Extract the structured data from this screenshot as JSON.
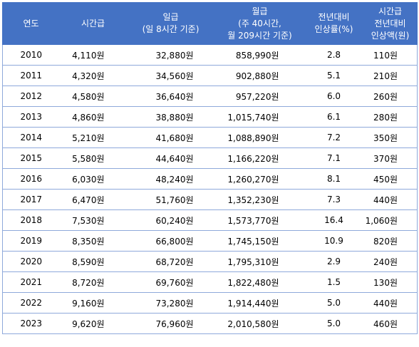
{
  "table": {
    "headers": [
      {
        "lines": [
          "연도"
        ]
      },
      {
        "lines": [
          "시간급"
        ]
      },
      {
        "lines": [
          "일급",
          "(일 8시간 기준)"
        ]
      },
      {
        "lines": [
          "월급",
          "(주 40시간,",
          "월 209시간 기준)"
        ]
      },
      {
        "lines": [
          "전년대비",
          "인상률(%)"
        ]
      },
      {
        "lines": [
          "시간급",
          "전년대비",
          "인상액(원)"
        ]
      }
    ],
    "rows": [
      [
        "2010",
        "4,110원",
        "32,880원",
        "858,990원",
        "2.8",
        "110원"
      ],
      [
        "2011",
        "4,320원",
        "34,560원",
        "902,880원",
        "5.1",
        "210원"
      ],
      [
        "2012",
        "4,580원",
        "36,640원",
        "957,220원",
        "6.0",
        "260원"
      ],
      [
        "2013",
        "4,860원",
        "38,880원",
        "1,015,740원",
        "6.1",
        "280원"
      ],
      [
        "2014",
        "5,210원",
        "41,680원",
        "1,088,890원",
        "7.2",
        "350원"
      ],
      [
        "2015",
        "5,580원",
        "44,640원",
        "1,166,220원",
        "7.1",
        "370원"
      ],
      [
        "2016",
        "6,030원",
        "48,240원",
        "1,260,270원",
        "8.1",
        "450원"
      ],
      [
        "2017",
        "6,470원",
        "51,760원",
        "1,352,230원",
        "7.3",
        "440원"
      ],
      [
        "2018",
        "7,530원",
        "60,240원",
        "1,573,770원",
        "16.4",
        "1,060원"
      ],
      [
        "2019",
        "8,350원",
        "66,800원",
        "1,745,150원",
        "10.9",
        "820원"
      ],
      [
        "2020",
        "8,590원",
        "68,720원",
        "1,795,310원",
        "2.9",
        "240원"
      ],
      [
        "2021",
        "8,720원",
        "69,760원",
        "1,822,480원",
        "1.5",
        "130원"
      ],
      [
        "2022",
        "9,160원",
        "73,280원",
        "1,914,440원",
        "5.0",
        "440원"
      ],
      [
        "2023",
        "9,620원",
        "76,960원",
        "2,010,580원",
        "5.0",
        "460원"
      ]
    ]
  },
  "colors": {
    "header_bg": "#4472c4",
    "header_text": "#ffffff",
    "row_border": "#8ea9db"
  }
}
